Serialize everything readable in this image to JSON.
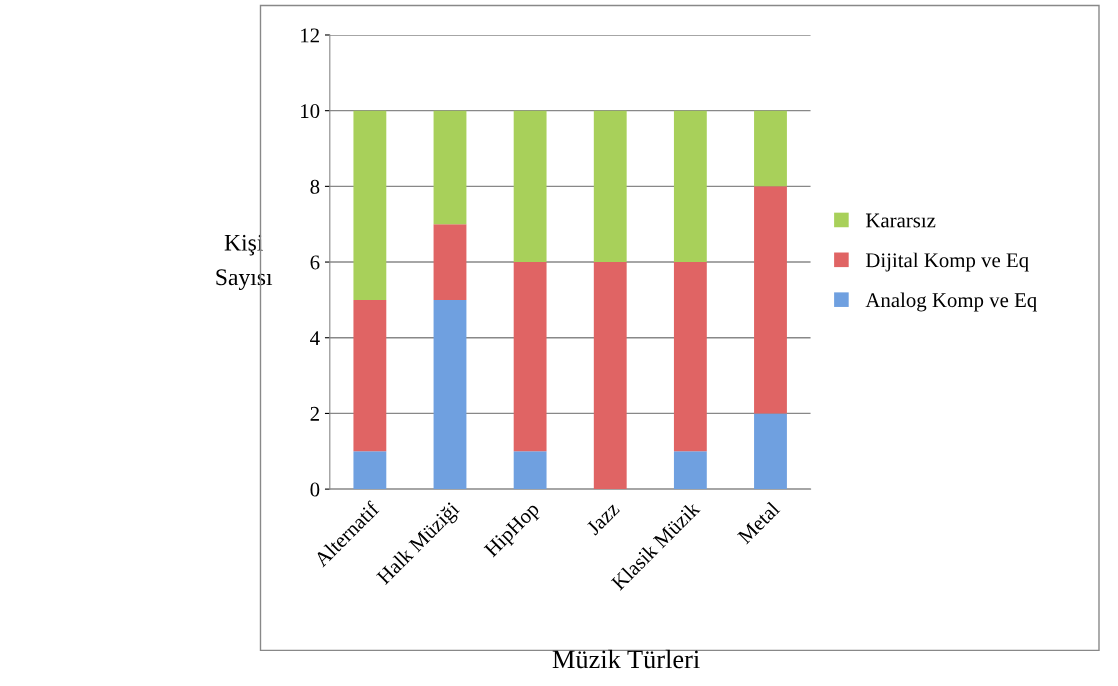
{
  "chart_data": {
    "type": "bar",
    "stacked": true,
    "xlabel": "Müzik Türleri",
    "ylabel": "Kişi\nSayısı",
    "categories": [
      "Alternatif",
      "Halk Müziği",
      "HipHop",
      "Jazz",
      "Klasik Müzik",
      "Metal"
    ],
    "series": [
      {
        "name": "Analog Komp ve Eq",
        "color": "#6fa0e0",
        "values": [
          1,
          5,
          1,
          0,
          1,
          2
        ]
      },
      {
        "name": "Dijital Komp ve Eq",
        "color": "#e06464",
        "values": [
          4,
          2,
          5,
          6,
          5,
          6
        ]
      },
      {
        "name": "Kararsız",
        "color": "#a8d05a",
        "values": [
          5,
          3,
          4,
          4,
          4,
          2
        ]
      }
    ],
    "ylim": [
      0,
      12
    ],
    "yticks": [
      0,
      2,
      4,
      6,
      8,
      10,
      12
    ],
    "grid": "y",
    "legend": "right"
  }
}
